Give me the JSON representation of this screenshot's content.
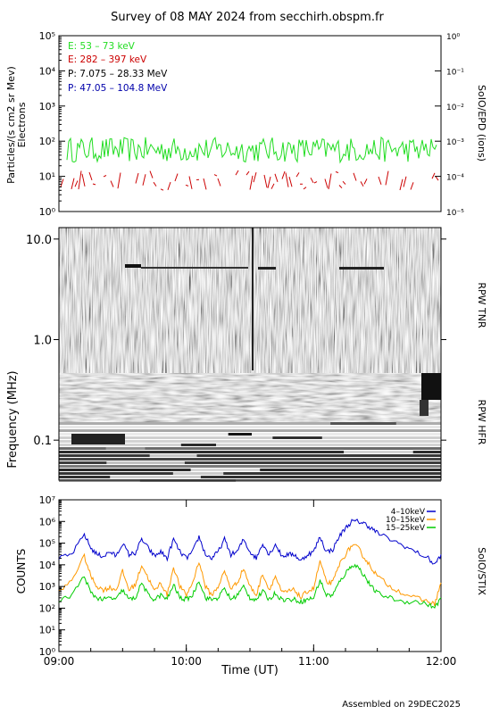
{
  "header": {
    "title": "Survey of 08 MAY 2024 from secchirh.obspm.fr",
    "footer": "Assembled on 29DEC2025"
  },
  "chart_data": [
    {
      "panel": "SoIO/EPD",
      "type": "line",
      "yscale": "log",
      "ylim": [
        1,
        100000
      ],
      "y2lim": [
        1e-05,
        1
      ],
      "ylabel_line1": "Particles/(s cm2 sr Mev)",
      "ylabel_line2": "Electrons",
      "y2label": "SoIO/EPD (ions)",
      "yticks": [
        "10⁰",
        "10¹",
        "10²",
        "10³",
        "10⁴",
        "10⁵"
      ],
      "y2ticks": [
        "10⁻⁵",
        "10⁻⁴",
        "10⁻³",
        "10⁻²",
        "10⁻¹",
        "10⁰"
      ],
      "legend": [
        {
          "label": "E: 53 – 73 keV",
          "color": "#22dd22"
        },
        {
          "label": "E: 282 – 397 keV",
          "color": "#cc0000"
        },
        {
          "label": "P: 7.075 – 28.33 MeV",
          "color": "#000000"
        },
        {
          "label": "P: 47.05 – 104.8 MeV",
          "color": "#0000aa"
        }
      ],
      "series": [
        {
          "name": "E: 53 – 73 keV",
          "color": "#22dd22",
          "typical_range": [
            25,
            130
          ]
        },
        {
          "name": "E: 282 – 397 keV",
          "color": "#cc0000",
          "typical_range": [
            4,
            15
          ]
        }
      ]
    },
    {
      "panel": "RPW TNR / RPW HFR",
      "type": "heatmap",
      "yscale": "log",
      "ylim": [
        0.04,
        13
      ],
      "ylabel": "Frequency (MHz)",
      "yticks": [
        "0.1",
        "1.0",
        "10.0"
      ],
      "labels": [
        "RPW TNR",
        "RPW HFR"
      ]
    },
    {
      "panel": "SoIO/STIX",
      "type": "line",
      "yscale": "log",
      "ylim": [
        1,
        10000000
      ],
      "ylabel": "COUNTS",
      "y2label": "SoIO/STIX",
      "xlabel": "Time (UT)",
      "xticks": [
        "09:00",
        "10:00",
        "11:00",
        "12:00"
      ],
      "yticks": [
        "10⁰",
        "10¹",
        "10²",
        "10³",
        "10⁴",
        "10⁵",
        "10⁶",
        "10⁷"
      ],
      "legend": [
        {
          "label": "4–10keV",
          "color": "#0000cc"
        },
        {
          "label": "10–15keV",
          "color": "#ff9900"
        },
        {
          "label": "15–25keV",
          "color": "#00cc00"
        }
      ],
      "x_hours": [
        9.0,
        9.1,
        9.2,
        9.25,
        9.3,
        9.35,
        9.4,
        9.45,
        9.5,
        9.55,
        9.6,
        9.65,
        9.7,
        9.75,
        9.8,
        9.85,
        9.9,
        9.95,
        10.0,
        10.05,
        10.1,
        10.15,
        10.2,
        10.25,
        10.3,
        10.35,
        10.4,
        10.45,
        10.5,
        10.55,
        10.6,
        10.65,
        10.7,
        10.75,
        10.8,
        10.85,
        10.9,
        10.95,
        11.0,
        11.05,
        11.1,
        11.15,
        11.2,
        11.25,
        11.3,
        11.35,
        11.4,
        11.45,
        11.5,
        11.6,
        11.7,
        11.8,
        11.9,
        11.95,
        12.0
      ],
      "series": [
        {
          "name": "4–10keV",
          "color": "#0000cc",
          "values": [
            20000,
            30000,
            250000,
            60000,
            30000,
            25000,
            40000,
            25000,
            100000,
            30000,
            35000,
            150000,
            60000,
            25000,
            40000,
            20000,
            150000,
            40000,
            20000,
            40000,
            200000,
            30000,
            20000,
            40000,
            150000,
            30000,
            40000,
            150000,
            40000,
            20000,
            100000,
            30000,
            90000,
            25000,
            30000,
            30000,
            15000,
            30000,
            40000,
            200000,
            40000,
            50000,
            200000,
            500000,
            1000000,
            1000000,
            800000,
            500000,
            300000,
            150000,
            80000,
            40000,
            20000,
            10000,
            30000
          ]
        },
        {
          "name": "10–15keV",
          "color": "#ff9900",
          "values": [
            500,
            2000,
            25000,
            3000,
            1000,
            700,
            900,
            700,
            5000,
            700,
            1200,
            10000,
            2500,
            600,
            1500,
            400,
            8000,
            1000,
            400,
            1500,
            15000,
            1000,
            400,
            1000,
            5000,
            800,
            1500,
            7000,
            1000,
            400,
            4000,
            700,
            3000,
            500,
            600,
            700,
            300,
            600,
            800,
            15000,
            1500,
            1500,
            10000,
            30000,
            80000,
            60000,
            20000,
            8000,
            3000,
            1000,
            500,
            300,
            200,
            150,
            1500
          ]
        },
        {
          "name": "15–25keV",
          "color": "#00cc00",
          "values": [
            200,
            400,
            3000,
            500,
            300,
            250,
            300,
            250,
            700,
            250,
            300,
            1500,
            400,
            250,
            400,
            250,
            1200,
            300,
            250,
            400,
            2000,
            300,
            250,
            300,
            800,
            250,
            400,
            1000,
            300,
            250,
            600,
            250,
            500,
            250,
            250,
            250,
            200,
            250,
            300,
            2000,
            400,
            400,
            1500,
            4000,
            10000,
            8000,
            3000,
            1000,
            500,
            300,
            200,
            200,
            150,
            100,
            300
          ]
        }
      ]
    }
  ]
}
